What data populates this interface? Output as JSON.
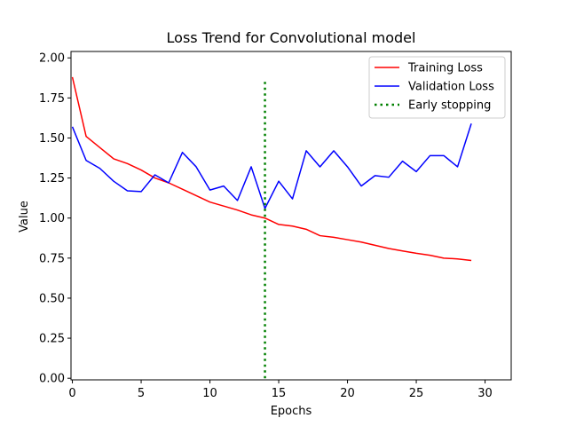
{
  "chart_data": {
    "type": "line",
    "title": "Loss Trend for Convolutional model",
    "xlabel": "Epochs",
    "ylabel": "Value",
    "xlim": [
      -0.1,
      31.9
    ],
    "ylim": [
      -0.01,
      2.04
    ],
    "xticks": [
      0,
      5,
      10,
      15,
      20,
      25,
      30
    ],
    "xtick_labels": [
      "0",
      "5",
      "10",
      "15",
      "20",
      "25",
      "30"
    ],
    "yticks": [
      0.0,
      0.25,
      0.5,
      0.75,
      1.0,
      1.25,
      1.5,
      1.75,
      2.0
    ],
    "ytick_labels": [
      "0.00",
      "0.25",
      "0.50",
      "0.75",
      "1.00",
      "1.25",
      "1.50",
      "1.75",
      "2.00"
    ],
    "grid": false,
    "legend_position": "top-right",
    "x": [
      0,
      1,
      2,
      3,
      4,
      5,
      6,
      7,
      8,
      9,
      10,
      11,
      12,
      13,
      14,
      15,
      16,
      17,
      18,
      19,
      20,
      21,
      22,
      23,
      24,
      25,
      26,
      27,
      28,
      29
    ],
    "series": [
      {
        "name": "Training Loss",
        "color": "#ff0000",
        "style": "solid",
        "values": [
          1.88,
          1.51,
          1.44,
          1.37,
          1.34,
          1.3,
          1.25,
          1.22,
          1.18,
          1.14,
          1.1,
          1.075,
          1.05,
          1.02,
          1.0,
          0.96,
          0.95,
          0.93,
          0.89,
          0.88,
          0.865,
          0.85,
          0.83,
          0.81,
          0.795,
          0.78,
          0.768,
          0.75,
          0.745,
          0.735
        ]
      },
      {
        "name": "Validation Loss",
        "color": "#0000ff",
        "style": "solid",
        "values": [
          1.57,
          1.36,
          1.31,
          1.23,
          1.17,
          1.165,
          1.27,
          1.22,
          1.41,
          1.32,
          1.175,
          1.2,
          1.11,
          1.32,
          1.06,
          1.23,
          1.12,
          1.42,
          1.32,
          1.42,
          1.32,
          1.2,
          1.265,
          1.255,
          1.355,
          1.29,
          1.39,
          1.39,
          1.32,
          1.59
        ]
      }
    ],
    "vlines": [
      {
        "name": "Early stopping",
        "x": 14,
        "y_range": [
          0.0,
          1.86
        ],
        "color": "#008000",
        "style": "dotted"
      }
    ]
  }
}
